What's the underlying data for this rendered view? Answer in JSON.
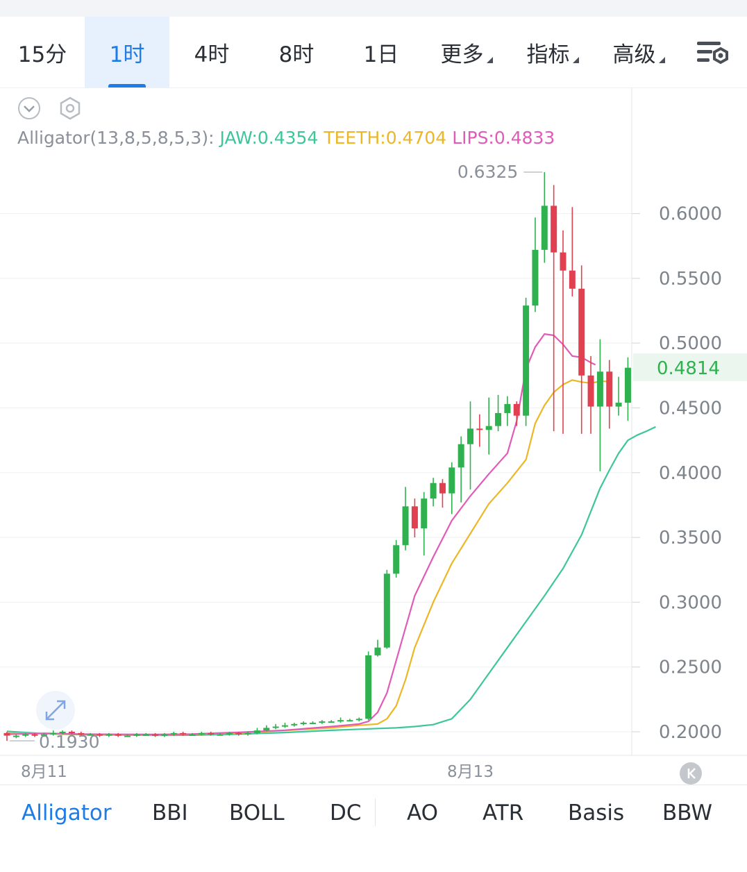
{
  "timeframes": [
    {
      "label": "15分",
      "active": false
    },
    {
      "label": "1时",
      "active": true
    },
    {
      "label": "4时",
      "active": false
    },
    {
      "label": "8时",
      "active": false
    },
    {
      "label": "1日",
      "active": false
    },
    {
      "label": "更多",
      "active": false,
      "dropdown": true
    },
    {
      "label": "指标",
      "active": false,
      "dropdown": true
    },
    {
      "label": "高级",
      "active": false,
      "dropdown": true
    }
  ],
  "indicator_legend": {
    "name": "Alligator(13,8,5,8,5,3):",
    "jaw": "JAW:0.4354",
    "teeth": "TEETH:0.4704",
    "lips": "LIPS:0.4833"
  },
  "colors": {
    "accent": "#1f7be6",
    "jaw": "#3cc69a",
    "teeth": "#ecb626",
    "lips": "#e05bb8",
    "up": "#2fb14f",
    "down": "#e0404f"
  },
  "chart_data": {
    "type": "candlestick",
    "y_ticks": [
      "0.6000",
      "0.5500",
      "0.5000",
      "0.4500",
      "0.4000",
      "0.3500",
      "0.3000",
      "0.2500",
      "0.2000"
    ],
    "y_tick_values": [
      0.6,
      0.55,
      0.5,
      0.45,
      0.4,
      0.35,
      0.3,
      0.25,
      0.2
    ],
    "ylim": [
      0.177,
      0.652
    ],
    "x_labels": [
      "8月11",
      "8月13"
    ],
    "x_label_index": [
      4,
      50
    ],
    "current_price": "0.4814",
    "max_label": "0.6325",
    "min_label": "0.1930",
    "candles": [
      [
        0.199,
        0.197,
        0.2,
        0.193
      ],
      [
        0.197,
        0.197,
        0.198,
        0.195
      ],
      [
        0.197,
        0.198,
        0.199,
        0.196
      ],
      [
        0.198,
        0.197,
        0.199,
        0.196
      ],
      [
        0.197,
        0.198,
        0.199,
        0.196
      ],
      [
        0.198,
        0.199,
        0.201,
        0.197
      ],
      [
        0.199,
        0.2,
        0.201,
        0.198
      ],
      [
        0.2,
        0.199,
        0.201,
        0.198
      ],
      [
        0.199,
        0.198,
        0.2,
        0.197
      ],
      [
        0.198,
        0.198,
        0.199,
        0.197
      ],
      [
        0.198,
        0.197,
        0.199,
        0.196
      ],
      [
        0.197,
        0.198,
        0.199,
        0.196
      ],
      [
        0.198,
        0.197,
        0.199,
        0.196
      ],
      [
        0.197,
        0.197,
        0.198,
        0.196
      ],
      [
        0.197,
        0.198,
        0.199,
        0.196
      ],
      [
        0.198,
        0.198,
        0.199,
        0.197
      ],
      [
        0.198,
        0.197,
        0.199,
        0.196
      ],
      [
        0.197,
        0.198,
        0.199,
        0.196
      ],
      [
        0.198,
        0.199,
        0.2,
        0.197
      ],
      [
        0.199,
        0.198,
        0.2,
        0.197
      ],
      [
        0.198,
        0.198,
        0.199,
        0.197
      ],
      [
        0.198,
        0.199,
        0.2,
        0.197
      ],
      [
        0.199,
        0.198,
        0.2,
        0.197
      ],
      [
        0.198,
        0.198,
        0.199,
        0.197
      ],
      [
        0.198,
        0.199,
        0.2,
        0.197
      ],
      [
        0.199,
        0.198,
        0.2,
        0.197
      ],
      [
        0.198,
        0.199,
        0.2,
        0.197
      ],
      [
        0.199,
        0.201,
        0.203,
        0.198
      ],
      [
        0.201,
        0.203,
        0.205,
        0.2
      ],
      [
        0.203,
        0.204,
        0.206,
        0.202
      ],
      [
        0.204,
        0.205,
        0.207,
        0.203
      ],
      [
        0.205,
        0.206,
        0.207,
        0.204
      ],
      [
        0.206,
        0.207,
        0.208,
        0.205
      ],
      [
        0.207,
        0.207,
        0.208,
        0.206
      ],
      [
        0.207,
        0.208,
        0.209,
        0.206
      ],
      [
        0.208,
        0.208,
        0.209,
        0.207
      ],
      [
        0.208,
        0.209,
        0.211,
        0.207
      ],
      [
        0.209,
        0.209,
        0.21,
        0.208
      ],
      [
        0.209,
        0.21,
        0.211,
        0.208
      ],
      [
        0.21,
        0.259,
        0.262,
        0.209
      ],
      [
        0.259,
        0.265,
        0.271,
        0.258
      ],
      [
        0.265,
        0.322,
        0.325,
        0.264
      ],
      [
        0.322,
        0.344,
        0.348,
        0.319
      ],
      [
        0.344,
        0.374,
        0.389,
        0.34
      ],
      [
        0.374,
        0.357,
        0.38,
        0.35
      ],
      [
        0.357,
        0.38,
        0.385,
        0.336
      ],
      [
        0.38,
        0.392,
        0.396,
        0.374
      ],
      [
        0.392,
        0.384,
        0.395,
        0.373
      ],
      [
        0.384,
        0.404,
        0.408,
        0.368
      ],
      [
        0.404,
        0.422,
        0.428,
        0.377
      ],
      [
        0.422,
        0.434,
        0.455,
        0.387
      ],
      [
        0.434,
        0.433,
        0.445,
        0.42
      ],
      [
        0.433,
        0.436,
        0.458,
        0.414
      ],
      [
        0.436,
        0.446,
        0.46,
        0.432
      ],
      [
        0.446,
        0.453,
        0.459,
        0.436
      ],
      [
        0.453,
        0.444,
        0.455,
        0.436
      ],
      [
        0.444,
        0.529,
        0.535,
        0.436
      ],
      [
        0.529,
        0.572,
        0.597,
        0.524
      ],
      [
        0.572,
        0.606,
        0.632,
        0.562
      ],
      [
        0.606,
        0.57,
        0.622,
        0.432
      ],
      [
        0.57,
        0.556,
        0.587,
        0.43
      ],
      [
        0.556,
        0.542,
        0.605,
        0.536
      ],
      [
        0.542,
        0.475,
        0.56,
        0.43
      ],
      [
        0.475,
        0.451,
        0.49,
        0.43
      ],
      [
        0.451,
        0.478,
        0.503,
        0.401
      ],
      [
        0.478,
        0.451,
        0.487,
        0.434
      ],
      [
        0.451,
        0.454,
        0.474,
        0.444
      ],
      [
        0.454,
        0.481,
        0.489,
        0.44
      ]
    ],
    "series": [
      {
        "name": "JAW",
        "values": [
          [
            0,
            0.2004
          ],
          [
            4,
            0.1985
          ],
          [
            8,
            0.1978
          ],
          [
            12,
            0.1975
          ],
          [
            16,
            0.1972
          ],
          [
            20,
            0.1974
          ],
          [
            25,
            0.1982
          ],
          [
            30,
            0.1994
          ],
          [
            35,
            0.2011
          ],
          [
            40,
            0.2025
          ],
          [
            42,
            0.203
          ],
          [
            44,
            0.204
          ],
          [
            46,
            0.2055
          ],
          [
            48,
            0.21
          ],
          [
            50,
            0.225
          ],
          [
            52,
            0.245
          ],
          [
            54,
            0.265
          ],
          [
            56,
            0.285
          ],
          [
            58,
            0.305
          ],
          [
            60,
            0.326
          ],
          [
            62,
            0.352
          ],
          [
            63,
            0.37
          ],
          [
            64,
            0.388
          ],
          [
            65,
            0.402
          ],
          [
            66,
            0.415
          ],
          [
            67,
            0.425
          ],
          [
            68,
            0.429
          ],
          [
            69,
            0.432
          ],
          [
            70,
            0.4354
          ]
        ]
      },
      {
        "name": "TEETH",
        "values": [
          [
            0,
            0.199
          ],
          [
            4,
            0.1985
          ],
          [
            8,
            0.198
          ],
          [
            12,
            0.1978
          ],
          [
            16,
            0.1976
          ],
          [
            20,
            0.198
          ],
          [
            25,
            0.199
          ],
          [
            30,
            0.201
          ],
          [
            35,
            0.203
          ],
          [
            38,
            0.205
          ],
          [
            40,
            0.206
          ],
          [
            41,
            0.21
          ],
          [
            42,
            0.22
          ],
          [
            43,
            0.24
          ],
          [
            44,
            0.265
          ],
          [
            46,
            0.3
          ],
          [
            48,
            0.33
          ],
          [
            50,
            0.353
          ],
          [
            52,
            0.376
          ],
          [
            54,
            0.392
          ],
          [
            56,
            0.41
          ],
          [
            57,
            0.438
          ],
          [
            58,
            0.452
          ],
          [
            59,
            0.462
          ],
          [
            60,
            0.468
          ],
          [
            61,
            0.4715
          ],
          [
            62,
            0.47
          ],
          [
            63,
            0.469
          ],
          [
            64,
            0.4705
          ],
          [
            65,
            0.4704
          ]
        ]
      },
      {
        "name": "LIPS",
        "values": [
          [
            0,
            0.198
          ],
          [
            4,
            0.1988
          ],
          [
            8,
            0.1982
          ],
          [
            12,
            0.198
          ],
          [
            16,
            0.1979
          ],
          [
            20,
            0.1982
          ],
          [
            25,
            0.1995
          ],
          [
            30,
            0.2012
          ],
          [
            35,
            0.204
          ],
          [
            38,
            0.206
          ],
          [
            39,
            0.208
          ],
          [
            40,
            0.215
          ],
          [
            41,
            0.23
          ],
          [
            42,
            0.255
          ],
          [
            43,
            0.28
          ],
          [
            44,
            0.305
          ],
          [
            46,
            0.335
          ],
          [
            48,
            0.363
          ],
          [
            50,
            0.382
          ],
          [
            52,
            0.399
          ],
          [
            54,
            0.415
          ],
          [
            55,
            0.44
          ],
          [
            56,
            0.48
          ],
          [
            57,
            0.497
          ],
          [
            58,
            0.507
          ],
          [
            59,
            0.506
          ],
          [
            60,
            0.499
          ],
          [
            61,
            0.49
          ],
          [
            62,
            0.489
          ],
          [
            63,
            0.485
          ],
          [
            63.5,
            0.4833
          ]
        ]
      }
    ]
  },
  "indicator_tabs": [
    {
      "label": "Alligator",
      "active": true
    },
    {
      "label": "BBI",
      "active": false
    },
    {
      "label": "BOLL",
      "active": false
    },
    {
      "label": "DC",
      "active": false
    },
    {
      "label": "AO",
      "active": false
    },
    {
      "label": "ATR",
      "active": false
    },
    {
      "label": "Basis",
      "active": false
    },
    {
      "label": "BBW",
      "active": false
    }
  ],
  "icons": {
    "collapse": "chevron-down-circle-icon",
    "settings": "hexagon-settings-icon",
    "menu": "list-settings-icon",
    "expand": "expand-arrows-icon",
    "scroll_latest": "scroll-to-latest-icon"
  }
}
